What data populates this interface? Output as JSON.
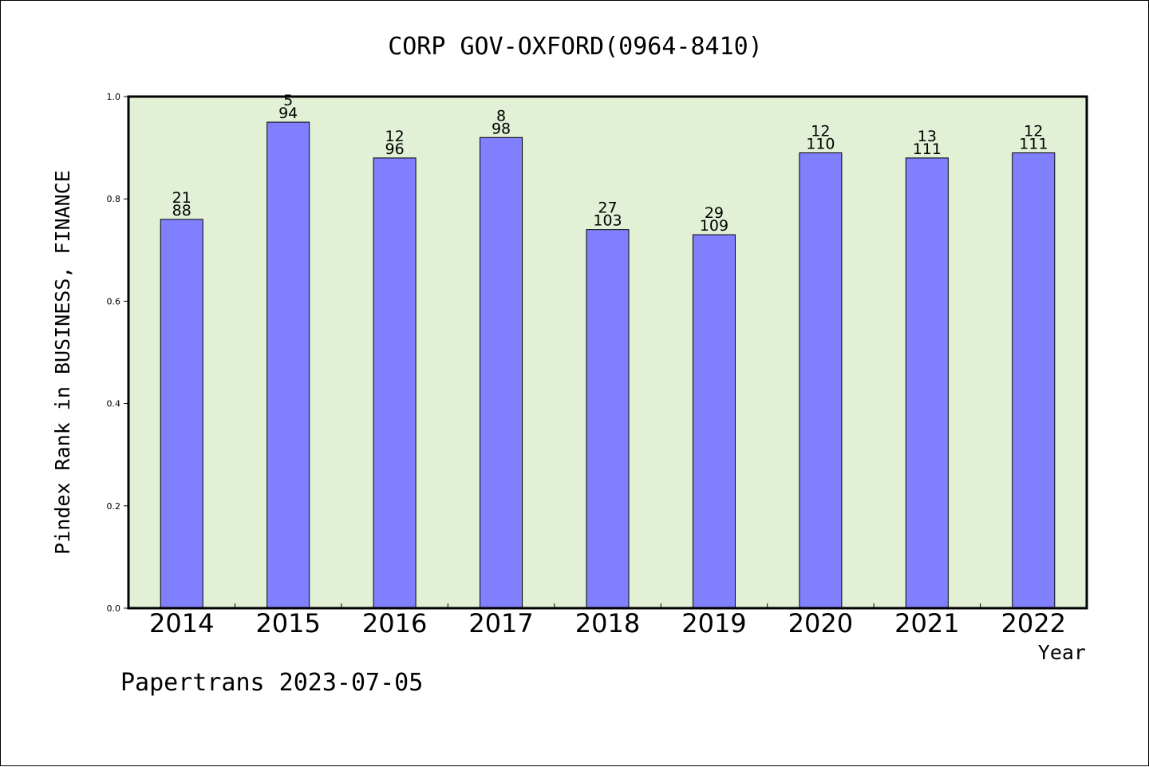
{
  "chart_data": {
    "type": "bar",
    "title": "CORP GOV-OXFORD(0964-8410)",
    "xlabel": "Year",
    "ylabel": "Pindex Rank in BUSINESS, FINANCE",
    "ylim": [
      0,
      1
    ],
    "yticks": [
      "0.0",
      "0.2",
      "0.4",
      "0.6",
      "0.8",
      "1.0"
    ],
    "categories": [
      "2014",
      "2015",
      "2016",
      "2017",
      "2018",
      "2019",
      "2020",
      "2021",
      "2022"
    ],
    "values": [
      0.76,
      0.95,
      0.88,
      0.92,
      0.74,
      0.73,
      0.89,
      0.88,
      0.89
    ],
    "rank_labels": [
      "21",
      "5",
      "12",
      "8",
      "27",
      "29",
      "12",
      "13",
      "12"
    ],
    "total_labels": [
      "88",
      "94",
      "96",
      "98",
      "103",
      "109",
      "110",
      "111",
      "111"
    ],
    "grid": false,
    "colors": {
      "bar": "#8080ff",
      "plot_bg": "#e2f0d6"
    }
  },
  "footer": {
    "text": "Papertrans 2023-07-05"
  }
}
